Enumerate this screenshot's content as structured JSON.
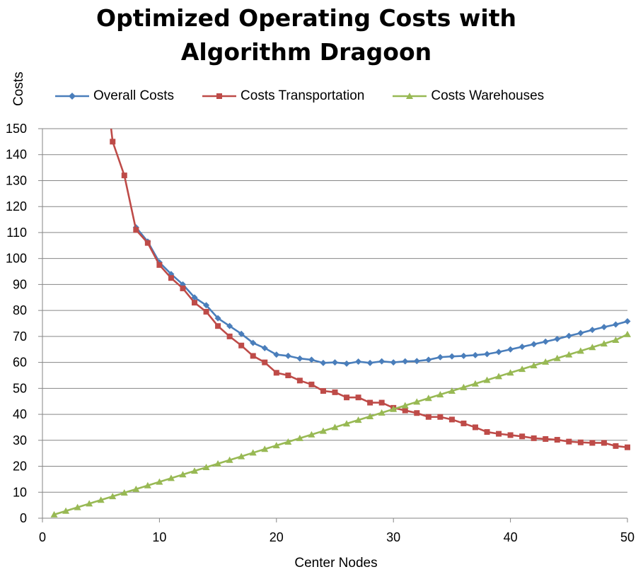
{
  "chart_data": {
    "type": "line",
    "title": "Optimized Operating Costs with\nAlgorithm Dragoon",
    "xlabel": "Center Nodes",
    "ylabel": "Costs",
    "xlim": [
      0,
      50
    ],
    "ylim": [
      0,
      150
    ],
    "xticks": [
      0,
      10,
      20,
      30,
      40,
      50
    ],
    "yticks": [
      0,
      10,
      20,
      30,
      40,
      50,
      60,
      70,
      80,
      90,
      100,
      110,
      120,
      130,
      140,
      150
    ],
    "grid": "horizontal",
    "legend_position": "top",
    "series": [
      {
        "name": "Overall Costs",
        "color": "#4a7ebb",
        "marker": "diamond",
        "x": [
          8,
          9,
          10,
          11,
          12,
          13,
          14,
          15,
          16,
          17,
          18,
          19,
          20,
          21,
          22,
          23,
          24,
          25,
          26,
          27,
          28,
          29,
          30,
          31,
          32,
          33,
          34,
          35,
          36,
          37,
          38,
          39,
          40,
          41,
          42,
          43,
          44,
          45,
          46,
          47,
          48,
          49,
          50
        ],
        "values": [
          112,
          106.5,
          98.5,
          94,
          90,
          85,
          82,
          77,
          74,
          71,
          67.5,
          65.5,
          63,
          62.5,
          61.5,
          61,
          59.8,
          60,
          59.5,
          60.3,
          59.8,
          60.4,
          60,
          60.4,
          60.5,
          61,
          62,
          62.3,
          62.5,
          62.8,
          63.2,
          64,
          65,
          66,
          67,
          68,
          69,
          70.2,
          71.3,
          72.5,
          73.6,
          74.6,
          75.8
        ]
      },
      {
        "name": "Costs Transportation",
        "color": "#be4b48",
        "marker": "square",
        "x": [
          6,
          7,
          8,
          9,
          10,
          11,
          12,
          13,
          14,
          15,
          16,
          17,
          18,
          19,
          20,
          21,
          22,
          23,
          24,
          25,
          26,
          27,
          28,
          29,
          30,
          31,
          32,
          33,
          34,
          35,
          36,
          37,
          38,
          39,
          40,
          41,
          42,
          43,
          44,
          45,
          46,
          47,
          48,
          49,
          50
        ],
        "values": [
          145,
          132,
          111,
          106,
          97.5,
          92.5,
          88.5,
          83,
          79.5,
          74,
          70,
          66.5,
          62.5,
          60,
          56,
          55,
          53,
          51.5,
          49,
          48.5,
          46.5,
          46.5,
          44.5,
          44.5,
          42.5,
          41.5,
          40.5,
          39,
          39,
          38,
          36.5,
          35,
          33.2,
          32.5,
          32,
          31.5,
          30.8,
          30.5,
          30.2,
          29.5,
          29.2,
          29,
          29,
          27.8,
          27.3
        ]
      },
      {
        "name": "Costs Warehouses",
        "color": "#98b954",
        "marker": "triangle",
        "x": [
          1,
          2,
          3,
          4,
          5,
          6,
          7,
          8,
          9,
          10,
          11,
          12,
          13,
          14,
          15,
          16,
          17,
          18,
          19,
          20,
          21,
          22,
          23,
          24,
          25,
          26,
          27,
          28,
          29,
          30,
          31,
          32,
          33,
          34,
          35,
          36,
          37,
          38,
          39,
          40,
          41,
          42,
          43,
          44,
          45,
          46,
          47,
          48,
          49,
          50
        ],
        "values": [
          1.4,
          2.8,
          4.2,
          5.6,
          7.0,
          8.4,
          9.8,
          11.2,
          12.6,
          14.0,
          15.4,
          16.8,
          18.2,
          19.6,
          21.0,
          22.4,
          23.8,
          25.2,
          26.6,
          28.0,
          29.4,
          30.8,
          32.2,
          33.6,
          35.0,
          36.4,
          37.8,
          39.2,
          40.6,
          42.0,
          43.4,
          44.8,
          46.2,
          47.6,
          49.0,
          50.4,
          51.8,
          53.2,
          54.6,
          56.0,
          57.4,
          58.8,
          60.2,
          61.6,
          63.0,
          64.4,
          65.8,
          67.2,
          68.6,
          70.8
        ]
      }
    ],
    "offscale_segment": {
      "series": "Costs Transportation",
      "description": "line rises above 150 before x=6"
    }
  }
}
